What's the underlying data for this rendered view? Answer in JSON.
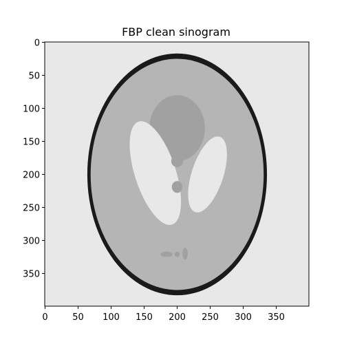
{
  "chart_data": {
    "type": "heatmap",
    "title": "FBP clean sinogram",
    "xlabel": "",
    "ylabel": "",
    "xlim": [
      0,
      399
    ],
    "ylim": [
      399,
      0
    ],
    "x_ticks": [
      0,
      50,
      100,
      150,
      200,
      250,
      300,
      350
    ],
    "y_ticks": [
      0,
      50,
      100,
      150,
      200,
      250,
      300,
      350
    ],
    "grid": false,
    "colormap": "gray",
    "background_intensity": 0.91,
    "image_shapes": [
      {
        "name": "outer-ellipse",
        "cx": 200,
        "cy": 200,
        "rx": 136,
        "ry": 183,
        "intensity": 0.1
      },
      {
        "name": "inner-ellipse",
        "cx": 200,
        "cy": 200,
        "rx": 131,
        "ry": 175,
        "intensity": 0.71
      },
      {
        "name": "upper-dark-ellipse",
        "cx": 200,
        "cy": 130,
        "rx": 42,
        "ry": 50,
        "intensity": 0.63
      },
      {
        "name": "left-bright-ellipse",
        "cx": 167,
        "cy": 198,
        "rx": 31,
        "ry": 82,
        "rotate": -18,
        "intensity": 0.91
      },
      {
        "name": "right-bright-ellipse",
        "cx": 246,
        "cy": 200,
        "rx": 24,
        "ry": 60,
        "rotate": 18,
        "intensity": 0.91
      },
      {
        "name": "small-ellipse-1",
        "cx": 200,
        "cy": 180,
        "rx": 9,
        "ry": 9,
        "intensity": 0.63
      },
      {
        "name": "small-ellipse-2",
        "cx": 200,
        "cy": 219,
        "rx": 8,
        "ry": 9,
        "intensity": 0.63
      },
      {
        "name": "small-ellipse-3",
        "cx": 184,
        "cy": 321,
        "rx": 9,
        "ry": 4,
        "intensity": 0.63
      },
      {
        "name": "small-ellipse-4",
        "cx": 200,
        "cy": 321,
        "rx": 4,
        "ry": 4,
        "intensity": 0.63
      },
      {
        "name": "small-ellipse-5",
        "cx": 212,
        "cy": 320,
        "rx": 4,
        "ry": 9,
        "intensity": 0.63
      }
    ]
  }
}
